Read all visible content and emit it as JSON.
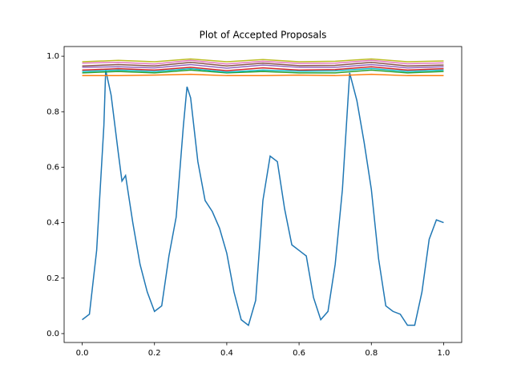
{
  "chart_data": {
    "type": "line",
    "title": "Plot of Accepted Proposals",
    "xlim": [
      -0.05,
      1.05
    ],
    "ylim": [
      -0.032,
      1.035
    ],
    "xticks": [
      {
        "value": 0,
        "label": "0.0"
      },
      0.2,
      0.4,
      0.6,
      0.8,
      {
        "value": 1,
        "label": "1.0"
      }
    ],
    "yticks": [
      {
        "value": 0,
        "label": "0.0"
      },
      0.2,
      0.4,
      0.6,
      0.8,
      {
        "value": 1,
        "label": "1.0"
      }
    ],
    "series": [
      {
        "color": "#1f77b4",
        "x": [
          0,
          0.02,
          0.04,
          0.06,
          0.065,
          0.08,
          0.1,
          0.11,
          0.12,
          0.14,
          0.16,
          0.18,
          0.2,
          0.22,
          0.24,
          0.26,
          0.28,
          0.29,
          0.3,
          0.32,
          0.34,
          0.36,
          0.38,
          0.4,
          0.42,
          0.44,
          0.46,
          0.48,
          0.5,
          0.52,
          0.54,
          0.56,
          0.58,
          0.6,
          0.62,
          0.64,
          0.66,
          0.68,
          0.7,
          0.72,
          0.74,
          0.76,
          0.78,
          0.8,
          0.82,
          0.84,
          0.86,
          0.88,
          0.9,
          0.92,
          0.94,
          0.96,
          0.98,
          1.0
        ],
        "values": [
          0.05,
          0.07,
          0.3,
          0.75,
          0.95,
          0.86,
          0.65,
          0.55,
          0.57,
          0.4,
          0.25,
          0.15,
          0.08,
          0.1,
          0.28,
          0.42,
          0.75,
          0.89,
          0.85,
          0.62,
          0.48,
          0.44,
          0.38,
          0.29,
          0.15,
          0.05,
          0.03,
          0.12,
          0.48,
          0.64,
          0.62,
          0.45,
          0.32,
          0.3,
          0.28,
          0.13,
          0.05,
          0.08,
          0.25,
          0.52,
          0.94,
          0.84,
          0.69,
          0.52,
          0.27,
          0.1,
          0.08,
          0.07,
          0.03,
          0.03,
          0.15,
          0.34,
          0.41,
          0.4
        ]
      },
      {
        "color": "#ff7f0e",
        "x": [
          0,
          0.1,
          0.2,
          0.3,
          0.4,
          0.5,
          0.6,
          0.7,
          0.8,
          0.9,
          1.0
        ],
        "values": [
          0.93,
          0.93,
          0.932,
          0.935,
          0.93,
          0.93,
          0.932,
          0.93,
          0.935,
          0.93,
          0.93
        ]
      },
      {
        "color": "#2ca02c",
        "x": [
          0,
          0.1,
          0.2,
          0.3,
          0.4,
          0.5,
          0.6,
          0.7,
          0.8,
          0.9,
          1.0
        ],
        "values": [
          0.94,
          0.945,
          0.94,
          0.95,
          0.94,
          0.945,
          0.94,
          0.94,
          0.95,
          0.94,
          0.945
        ]
      },
      {
        "color": "#d62728",
        "x": [
          0,
          0.1,
          0.2,
          0.3,
          0.4,
          0.5,
          0.6,
          0.7,
          0.8,
          0.9,
          1.0
        ],
        "values": [
          0.95,
          0.955,
          0.95,
          0.96,
          0.948,
          0.958,
          0.95,
          0.952,
          0.962,
          0.95,
          0.955
        ]
      },
      {
        "color": "#9467bd",
        "x": [
          0,
          0.1,
          0.2,
          0.3,
          0.4,
          0.5,
          0.6,
          0.7,
          0.8,
          0.9,
          1.0
        ],
        "values": [
          0.96,
          0.962,
          0.958,
          0.97,
          0.957,
          0.968,
          0.96,
          0.96,
          0.97,
          0.958,
          0.962
        ]
      },
      {
        "color": "#8c564b",
        "x": [
          0,
          0.1,
          0.2,
          0.3,
          0.4,
          0.5,
          0.6,
          0.7,
          0.8,
          0.9,
          1.0
        ],
        "values": [
          0.965,
          0.97,
          0.965,
          0.978,
          0.965,
          0.975,
          0.966,
          0.967,
          0.978,
          0.965,
          0.968
        ]
      },
      {
        "color": "#e377c2",
        "x": [
          0,
          0.1,
          0.2,
          0.3,
          0.4,
          0.5,
          0.6,
          0.7,
          0.8,
          0.9,
          1.0
        ],
        "values": [
          0.975,
          0.978,
          0.972,
          0.985,
          0.972,
          0.982,
          0.974,
          0.975,
          0.985,
          0.973,
          0.976
        ]
      },
      {
        "color": "#bcbd22",
        "x": [
          0,
          0.1,
          0.2,
          0.3,
          0.4,
          0.5,
          0.6,
          0.7,
          0.8,
          0.9,
          1.0
        ],
        "values": [
          0.98,
          0.985,
          0.98,
          0.99,
          0.98,
          0.988,
          0.98,
          0.982,
          0.99,
          0.98,
          0.983
        ]
      },
      {
        "color": "#17becf",
        "x": [
          0,
          0.1,
          0.2,
          0.3,
          0.4,
          0.5,
          0.6,
          0.7,
          0.8,
          0.9,
          1.0
        ],
        "values": [
          0.945,
          0.95,
          0.945,
          0.955,
          0.943,
          0.95,
          0.946,
          0.947,
          0.956,
          0.945,
          0.95
        ]
      }
    ]
  }
}
